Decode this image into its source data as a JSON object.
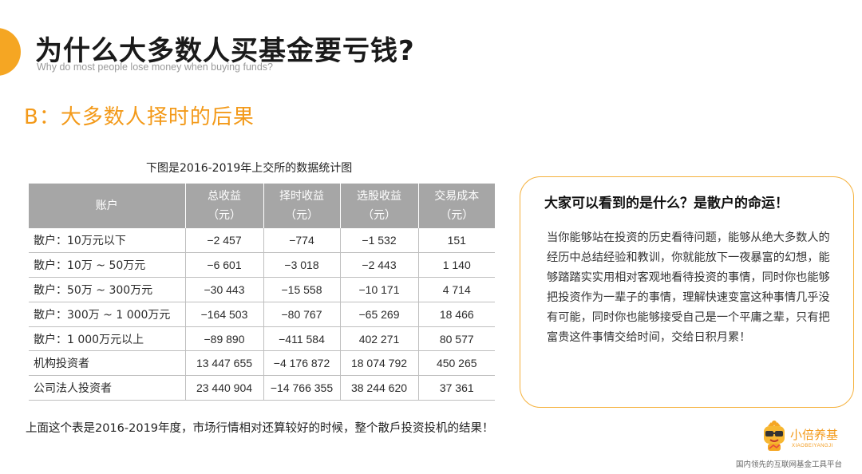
{
  "header": {
    "title": "为什么大多数人买基金要亏钱?",
    "subtitle": "Why do most people lose money when buying funds?"
  },
  "section": {
    "heading": "B：大多数人择时的后果"
  },
  "table": {
    "caption": "下图是2016-2019年上交所的数据统计图",
    "headers": [
      {
        "label": "账户",
        "unit": ""
      },
      {
        "label": "总收益",
        "unit": "（元）"
      },
      {
        "label": "择时收益",
        "unit": "（元）"
      },
      {
        "label": "选股收益",
        "unit": "（元）"
      },
      {
        "label": "交易成本",
        "unit": "（元）"
      }
    ],
    "rows": [
      [
        "散户：10万元以下",
        "−2 457",
        "−774",
        "−1 532",
        "151"
      ],
      [
        "散户：10万 ~ 50万元",
        "−6 601",
        "−3 018",
        "−2 443",
        "1 140"
      ],
      [
        "散户：50万 ~ 300万元",
        "−30 443",
        "−15 558",
        "−10 171",
        "4 714"
      ],
      [
        "散户：300万 ~ 1 000万元",
        "−164 503",
        "−80 767",
        "−65 269",
        "18 466"
      ],
      [
        "散户：1 000万元以上",
        "−89 890",
        "−411 584",
        "402 271",
        "80 577"
      ],
      [
        "机构投资者",
        "13 447 655",
        "−4 176 872",
        "18 074 792",
        "450 265"
      ],
      [
        "公司法人投资者",
        "23 440 904",
        "−14 766 355",
        "38 244 620",
        "37 361"
      ]
    ]
  },
  "footnote": "上面这个表是2016-2019年度，市场行情相对还算较好的时候，整个散戶投资投机的结果！",
  "callout": {
    "title": "大家可以看到的是什么？是散户的命运！",
    "body": "当你能够站在投资的历史看待问题，能够从绝大多数人的经历中总结经验和教训，你就能放下一夜暴富的幻想，能够踏踏实实用相对客观地看待投资的事情，同时你也能够把投资作为一辈子的事情，理解快速变富这种事情几乎没有可能，同时你也能够接受自己是一个平庸之辈，只有把富贵这件事情交给时间，交给日积月累！"
  },
  "brand": {
    "name": "小倍养基",
    "pinyin": "XIAOBEIYANGJI",
    "slogan": "国内领先的互联网基金工具平台",
    "icon": "smiley-mascot-icon"
  },
  "colors": {
    "accent": "#f39a1a",
    "header_bg": "#a6a6a6",
    "callout_border": "#f5b13c"
  }
}
